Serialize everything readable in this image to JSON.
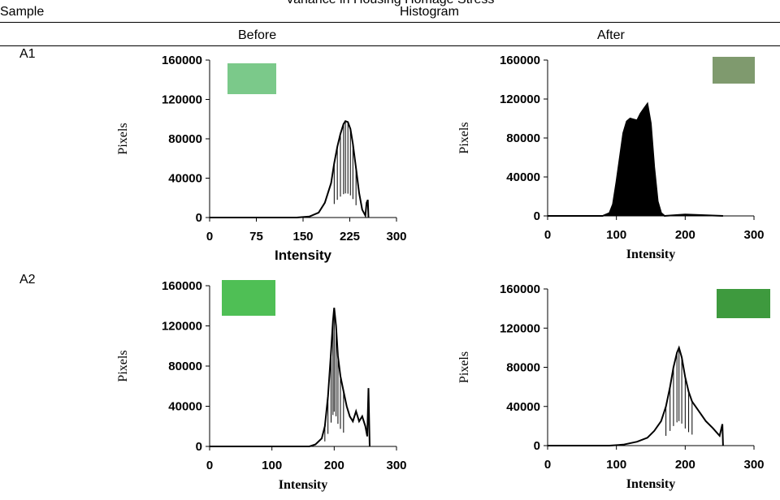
{
  "header": {
    "caption": "Variance in Housing Homage Stress",
    "sample": "Sample",
    "histogram": "Histogram",
    "before": "Before",
    "after": "After"
  },
  "rows": [
    {
      "label": "A1"
    },
    {
      "label": "A2"
    }
  ],
  "colors": {
    "swatch_a1_before": "#7bc98a",
    "swatch_a1_after": "#7f9a6e",
    "swatch_a2_before": "#4fbf55",
    "swatch_a2_after": "#3e9a3e",
    "line": "#000000"
  },
  "chart_data": [
    {
      "id": "a1-before",
      "type": "line",
      "xlabel": "Intensity",
      "ylabel": "Pixels",
      "xlim": [
        0,
        300
      ],
      "ylim": [
        0,
        160000
      ],
      "xticks": [
        0,
        75,
        150,
        225,
        300
      ],
      "yticks": [
        0,
        40000,
        80000,
        120000,
        160000
      ],
      "series": [
        {
          "x": [
            0,
            140,
            160,
            175,
            185,
            195,
            200,
            205,
            210,
            215,
            218,
            222,
            226,
            230,
            235,
            240,
            245,
            250,
            252,
            254,
            255
          ],
          "y": [
            0,
            0,
            1000,
            5000,
            15000,
            35000,
            55000,
            72000,
            85000,
            95000,
            98000,
            97000,
            90000,
            75000,
            50000,
            25000,
            8000,
            2000,
            15000,
            18000,
            0
          ]
        }
      ]
    },
    {
      "id": "a1-after",
      "type": "line",
      "xlabel": "Intensity",
      "ylabel": "Pixels",
      "xlim": [
        0,
        300
      ],
      "ylim": [
        0,
        160000
      ],
      "xticks": [
        0,
        100,
        200,
        300
      ],
      "yticks": [
        0,
        40000,
        80000,
        120000,
        160000
      ],
      "series": [
        {
          "x": [
            0,
            80,
            90,
            95,
            100,
            105,
            110,
            115,
            120,
            125,
            130,
            135,
            140,
            145,
            150,
            155,
            160,
            165,
            170,
            200,
            255
          ],
          "y": [
            0,
            0,
            3000,
            12000,
            35000,
            60000,
            85000,
            97000,
            100000,
            99000,
            98000,
            105000,
            110000,
            115000,
            95000,
            50000,
            15000,
            3000,
            0,
            1500,
            0
          ]
        }
      ]
    },
    {
      "id": "a2-before",
      "type": "line",
      "xlabel": "Intensity",
      "ylabel": "Pixels",
      "xlim": [
        0,
        300
      ],
      "ylim": [
        0,
        160000
      ],
      "xticks": [
        0,
        100,
        200,
        300
      ],
      "yticks": [
        0,
        40000,
        80000,
        120000,
        160000
      ],
      "series": [
        {
          "x": [
            0,
            160,
            170,
            180,
            185,
            190,
            195,
            198,
            200,
            203,
            206,
            210,
            215,
            220,
            225,
            230,
            235,
            240,
            245,
            250,
            253,
            255,
            257
          ],
          "y": [
            0,
            0,
            2000,
            8000,
            20000,
            50000,
            95000,
            125000,
            138000,
            120000,
            90000,
            70000,
            55000,
            40000,
            30000,
            25000,
            35000,
            25000,
            30000,
            20000,
            10000,
            58000,
            0
          ]
        }
      ]
    },
    {
      "id": "a2-after",
      "type": "line",
      "xlabel": "Intensity",
      "ylabel": "Pixels",
      "xlim": [
        0,
        300
      ],
      "ylim": [
        0,
        160000
      ],
      "xticks": [
        0,
        100,
        200,
        300
      ],
      "yticks": [
        0,
        40000,
        80000,
        120000,
        160000
      ],
      "series": [
        {
          "x": [
            0,
            90,
            110,
            130,
            145,
            155,
            165,
            172,
            178,
            183,
            188,
            191,
            195,
            200,
            205,
            210,
            220,
            230,
            240,
            250,
            254,
            255
          ],
          "y": [
            0,
            0,
            1000,
            4000,
            8000,
            15000,
            25000,
            40000,
            60000,
            80000,
            95000,
            100000,
            90000,
            70000,
            55000,
            45000,
            35000,
            25000,
            18000,
            10000,
            22000,
            0
          ]
        }
      ]
    }
  ]
}
